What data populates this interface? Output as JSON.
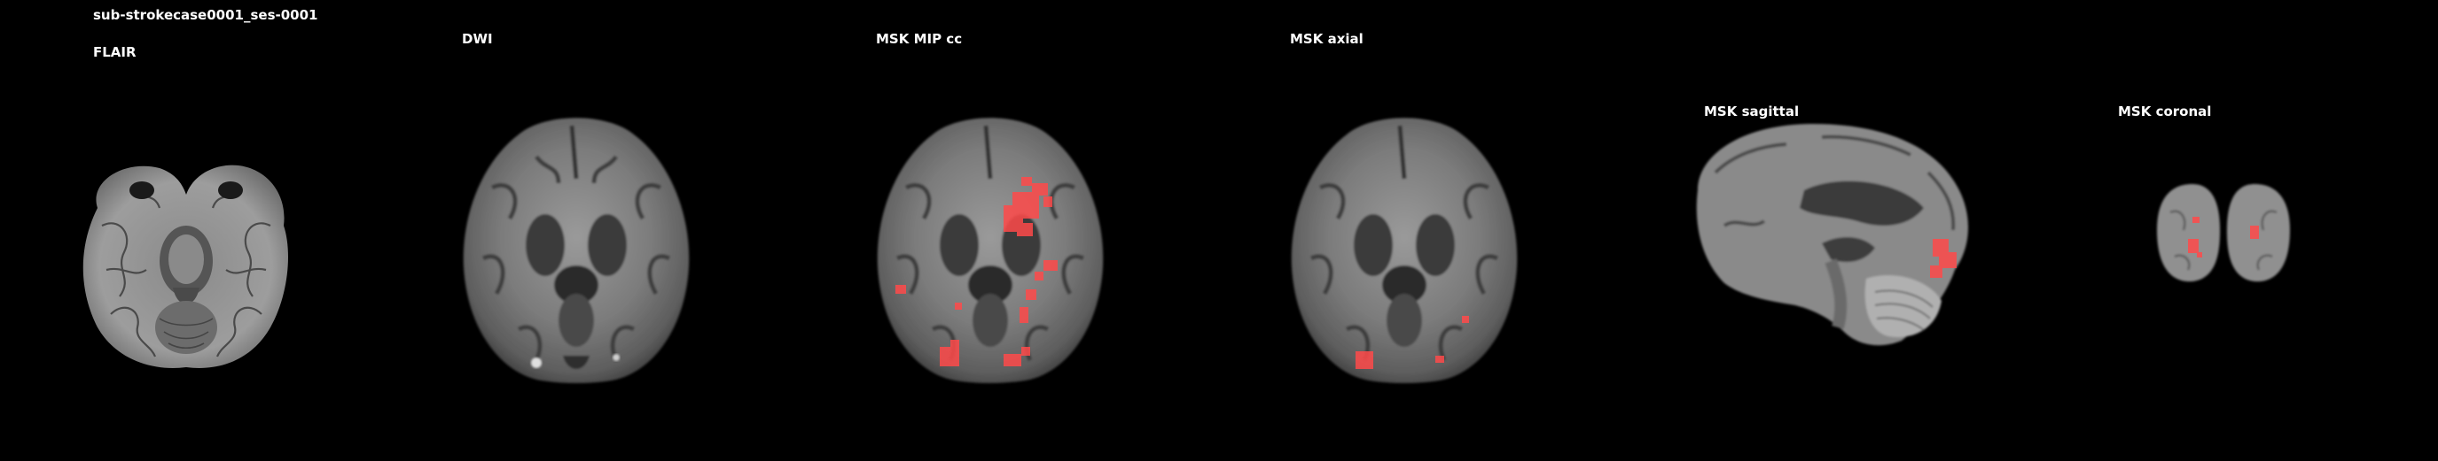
{
  "subject_title": "sub-strokecase0001_ses-0001",
  "panels": [
    {
      "id": "flair",
      "label": "FLAIR"
    },
    {
      "id": "dwi",
      "label": "DWI"
    },
    {
      "id": "mip",
      "label": "MSK MIP cc"
    },
    {
      "id": "axial",
      "label": "MSK axial"
    },
    {
      "id": "sagittal",
      "label": "MSK sagittal"
    },
    {
      "id": "coronal",
      "label": "MSK coronal"
    }
  ],
  "colors": {
    "background": "#000000",
    "text": "#ffffff",
    "lesion": "#ff4a4a"
  }
}
